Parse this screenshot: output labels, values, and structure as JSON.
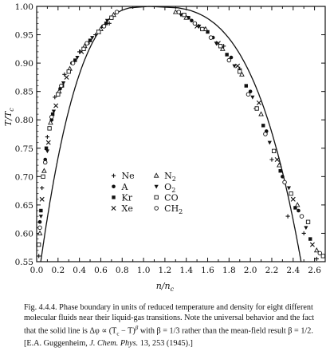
{
  "chart_data": {
    "type": "scatter",
    "title": "",
    "xlabel": "n/n_c",
    "ylabel": "T/T_c",
    "xlim": [
      0.0,
      2.7
    ],
    "ylim": [
      0.55,
      1.0
    ],
    "xticks": [
      0.0,
      0.1,
      0.2,
      0.3,
      0.4,
      0.5,
      0.6,
      0.7,
      0.8,
      0.9,
      1.0,
      1.1,
      1.2,
      1.3,
      1.4,
      1.5,
      1.6,
      1.7,
      1.8,
      1.9,
      2.0,
      2.1,
      2.2,
      2.3,
      2.4,
      2.5,
      2.6
    ],
    "xtick_labels": [
      "0.0",
      "0.2",
      "0.4",
      "0.6",
      "0.8",
      "1.0",
      "1.2",
      "1.4",
      "1.6",
      "1.8",
      "2.0",
      "2.2",
      "2.4",
      "2.6"
    ],
    "yticks": [
      0.55,
      0.6,
      0.65,
      0.7,
      0.75,
      0.8,
      0.85,
      0.9,
      0.95,
      1.0
    ],
    "ytick_labels": [
      "0.55",
      "0.60",
      "0.65",
      "0.70",
      "0.75",
      "0.80",
      "0.85",
      "0.90",
      "0.95",
      "1.00"
    ],
    "grid": false,
    "legend": "center",
    "fit_line": {
      "description_in_caption": true,
      "beta": 0.3333,
      "critical_density": 1.0,
      "critical_temperature": 1.0
    },
    "series": [
      {
        "name": "Ne",
        "marker": "plus",
        "x": [
          0.02,
          0.05,
          0.1,
          0.17,
          0.26,
          0.4,
          0.55,
          0.68,
          1.55,
          1.75,
          1.9,
          2.05,
          2.2,
          2.35,
          2.5,
          2.62
        ],
        "y": [
          0.56,
          0.68,
          0.77,
          0.84,
          0.88,
          0.92,
          0.95,
          0.97,
          0.96,
          0.93,
          0.89,
          0.82,
          0.73,
          0.63,
          0.6,
          0.555
        ]
      },
      {
        "name": "A",
        "marker": "dot",
        "x": [
          0.03,
          0.08,
          0.14,
          0.22,
          0.33,
          0.48,
          0.62,
          1.45,
          1.65,
          1.82,
          2.0,
          2.15,
          2.3,
          2.45
        ],
        "y": [
          0.62,
          0.73,
          0.8,
          0.855,
          0.9,
          0.935,
          0.965,
          0.975,
          0.945,
          0.91,
          0.85,
          0.78,
          0.7,
          0.64
        ]
      },
      {
        "name": "Kr",
        "marker": "square",
        "x": [
          0.04,
          0.09,
          0.15,
          0.24,
          0.36,
          0.5,
          0.65,
          1.42,
          1.6,
          1.78,
          1.96,
          2.12,
          2.28,
          2.42,
          2.56
        ],
        "y": [
          0.64,
          0.75,
          0.81,
          0.86,
          0.905,
          0.94,
          0.97,
          0.98,
          0.955,
          0.915,
          0.86,
          0.79,
          0.71,
          0.645,
          0.59
        ]
      },
      {
        "name": "Xe",
        "marker": "cross",
        "x": [
          0.05,
          0.11,
          0.18,
          0.28,
          0.42,
          0.58,
          1.5,
          1.7,
          1.88,
          2.08,
          2.25,
          2.4,
          2.58
        ],
        "y": [
          0.66,
          0.76,
          0.825,
          0.875,
          0.92,
          0.955,
          0.965,
          0.935,
          0.895,
          0.83,
          0.73,
          0.66,
          0.58
        ]
      },
      {
        "name": "N_2",
        "marker": "triangle-up",
        "x": [
          0.03,
          0.07,
          0.13,
          0.21,
          0.31,
          0.45,
          0.6,
          0.72,
          1.3,
          1.4,
          1.58,
          1.74,
          1.92,
          2.1,
          2.27,
          2.44,
          2.62
        ],
        "y": [
          0.6,
          0.71,
          0.795,
          0.85,
          0.89,
          0.93,
          0.96,
          0.985,
          0.99,
          0.98,
          0.96,
          0.925,
          0.88,
          0.81,
          0.72,
          0.65,
          0.57
        ]
      },
      {
        "name": "O_2",
        "marker": "triangle-down",
        "x": [
          0.04,
          0.1,
          0.16,
          0.25,
          0.38,
          0.52,
          0.66,
          1.35,
          1.52,
          1.68,
          1.85,
          2.02,
          2.18,
          2.36,
          2.52
        ],
        "y": [
          0.63,
          0.745,
          0.815,
          0.865,
          0.91,
          0.945,
          0.975,
          0.985,
          0.965,
          0.935,
          0.895,
          0.84,
          0.76,
          0.68,
          0.61
        ]
      },
      {
        "name": "CO",
        "marker": "square-open",
        "x": [
          0.02,
          0.06,
          0.12,
          0.2,
          0.3,
          0.44,
          0.58,
          0.7,
          1.38,
          1.55,
          1.72,
          1.9,
          2.06,
          2.22,
          2.38,
          2.54,
          2.68
        ],
        "y": [
          0.58,
          0.7,
          0.785,
          0.845,
          0.885,
          0.925,
          0.955,
          0.98,
          0.985,
          0.96,
          0.93,
          0.885,
          0.82,
          0.745,
          0.67,
          0.62,
          0.56
        ]
      },
      {
        "name": "CH_2",
        "marker": "circle-open",
        "x": [
          0.03,
          0.08,
          0.14,
          0.23,
          0.34,
          0.47,
          0.63,
          0.75,
          1.33,
          1.48,
          1.63,
          1.8,
          1.98,
          2.14,
          2.32,
          2.48,
          2.65
        ],
        "y": [
          0.61,
          0.725,
          0.805,
          0.86,
          0.9,
          0.935,
          0.965,
          0.99,
          0.99,
          0.97,
          0.945,
          0.905,
          0.845,
          0.775,
          0.69,
          0.63,
          0.565
        ]
      }
    ]
  },
  "legend_items": [
    {
      "label": "Ne"
    },
    {
      "label": "A"
    },
    {
      "label": "Kr"
    },
    {
      "label": "Xe"
    },
    {
      "label": "N"
    },
    {
      "label": "O"
    },
    {
      "label": "CO"
    },
    {
      "label": "CH"
    }
  ],
  "caption": {
    "fig": "Fig. 4.4.4.",
    "text": "Phase boundary in units of reduced temperature and density for eight different molecular fluids near their liquid-gas transitions. Note the universal behavior and the fact that the solid line is Δφ ∝ (T",
    "text2": " − T)",
    "text3": " with β = 1/3 rather than the mean-field result β = 1/2. [E.A. Guggenheim, ",
    "journal": "J. Chem. Phys.",
    "ref": " 13, 253 (1945).]"
  }
}
